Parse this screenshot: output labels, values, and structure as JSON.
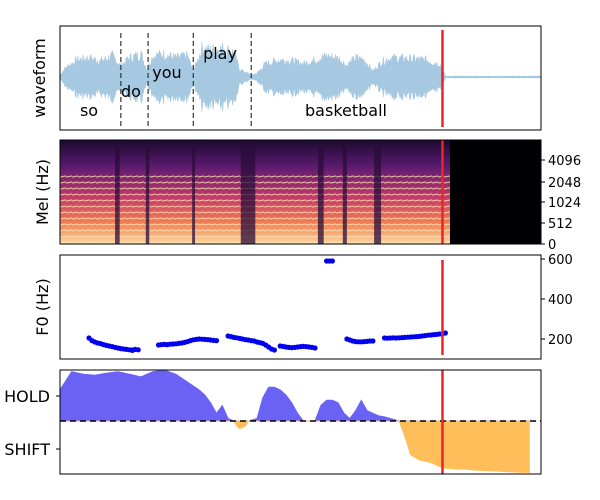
{
  "colors": {
    "waveform": "#a6c8e0",
    "marker": "#e8262a",
    "f0_points": "#0000ee",
    "hold_fill": "#6a62f4",
    "shift_fill": "#ffbe5a",
    "dashed": "#000000"
  },
  "chart_data": [
    {
      "type": "area",
      "panel": "waveform",
      "ylabel": "waveform",
      "word_labels": [
        "so",
        "do",
        "you",
        "play",
        "basketball"
      ],
      "word_boundaries_s": [
        1.05,
        1.52,
        2.3,
        3.3
      ],
      "time_range_s": [
        0,
        8.3
      ],
      "speech_end_s": 6.6,
      "marker_s": 6.6,
      "amplitude_envelope": [
        [
          0.0,
          0.05
        ],
        [
          0.1,
          0.25
        ],
        [
          0.3,
          0.45
        ],
        [
          0.5,
          0.5
        ],
        [
          0.7,
          0.42
        ],
        [
          0.9,
          0.55
        ],
        [
          1.05,
          0.3
        ],
        [
          1.2,
          0.5
        ],
        [
          1.4,
          0.6
        ],
        [
          1.5,
          0.2
        ],
        [
          1.6,
          0.55
        ],
        [
          1.8,
          0.6
        ],
        [
          2.0,
          0.5
        ],
        [
          2.2,
          0.55
        ],
        [
          2.3,
          0.15
        ],
        [
          2.45,
          0.75
        ],
        [
          2.6,
          0.7
        ],
        [
          2.8,
          0.75
        ],
        [
          3.0,
          0.65
        ],
        [
          3.1,
          0.2
        ],
        [
          3.3,
          0.05
        ],
        [
          3.4,
          0.1
        ],
        [
          3.55,
          0.35
        ],
        [
          3.8,
          0.45
        ],
        [
          4.0,
          0.42
        ],
        [
          4.2,
          0.35
        ],
        [
          4.4,
          0.45
        ],
        [
          4.6,
          0.55
        ],
        [
          4.8,
          0.5
        ],
        [
          4.95,
          0.3
        ],
        [
          5.1,
          0.5
        ],
        [
          5.25,
          0.45
        ],
        [
          5.4,
          0.15
        ],
        [
          5.55,
          0.4
        ],
        [
          5.7,
          0.5
        ],
        [
          6.0,
          0.48
        ],
        [
          6.3,
          0.45
        ],
        [
          6.55,
          0.35
        ],
        [
          6.65,
          0.02
        ],
        [
          8.3,
          0.02
        ]
      ]
    },
    {
      "type": "heatmap",
      "panel": "mel-spectrogram",
      "ylabel": "Mel (Hz)",
      "y_ticks": [
        "4096",
        "2048",
        "1024",
        "512",
        "0"
      ],
      "speech_end_s": 6.6,
      "marker_s": 6.6
    },
    {
      "type": "scatter",
      "panel": "f0",
      "ylabel": "F0 (Hz)",
      "y_ticks": [
        200,
        400,
        600
      ],
      "ylim": [
        100,
        620
      ],
      "marker_s": 6.6,
      "points": [
        [
          0.5,
          205
        ],
        [
          0.55,
          192
        ],
        [
          0.6,
          185
        ],
        [
          0.65,
          180
        ],
        [
          0.7,
          177
        ],
        [
          0.75,
          172
        ],
        [
          0.8,
          168
        ],
        [
          0.85,
          165
        ],
        [
          0.9,
          162
        ],
        [
          0.95,
          158
        ],
        [
          1.0,
          155
        ],
        [
          1.05,
          152
        ],
        [
          1.1,
          150
        ],
        [
          1.15,
          148
        ],
        [
          1.2,
          146
        ],
        [
          1.25,
          145
        ],
        [
          1.25,
          143
        ],
        [
          1.3,
          148
        ],
        [
          1.35,
          146
        ],
        [
          1.7,
          170
        ],
        [
          1.75,
          172
        ],
        [
          1.8,
          173
        ],
        [
          1.85,
          172
        ],
        [
          1.9,
          174
        ],
        [
          1.95,
          175
        ],
        [
          2.0,
          176
        ],
        [
          2.05,
          178
        ],
        [
          2.1,
          180
        ],
        [
          2.15,
          183
        ],
        [
          2.2,
          187
        ],
        [
          2.25,
          192
        ],
        [
          2.3,
          196
        ],
        [
          2.35,
          198
        ],
        [
          2.4,
          200
        ],
        [
          2.45,
          199
        ],
        [
          2.5,
          198
        ],
        [
          2.55,
          197
        ],
        [
          2.6,
          195
        ],
        [
          2.65,
          193
        ],
        [
          2.7,
          192
        ],
        [
          2.9,
          215
        ],
        [
          2.95,
          212
        ],
        [
          3.0,
          208
        ],
        [
          3.05,
          206
        ],
        [
          3.1,
          203
        ],
        [
          3.15,
          200
        ],
        [
          3.2,
          197
        ],
        [
          3.25,
          195
        ],
        [
          3.3,
          192
        ],
        [
          3.35,
          190
        ],
        [
          3.4,
          185
        ],
        [
          3.45,
          182
        ],
        [
          3.5,
          178
        ],
        [
          3.55,
          170
        ],
        [
          3.6,
          160
        ],
        [
          3.65,
          150
        ],
        [
          3.7,
          145
        ],
        [
          3.8,
          165
        ],
        [
          3.85,
          163
        ],
        [
          3.9,
          160
        ],
        [
          3.95,
          158
        ],
        [
          4.0,
          157
        ],
        [
          4.05,
          158
        ],
        [
          4.1,
          160
        ],
        [
          4.15,
          162
        ],
        [
          4.2,
          163
        ],
        [
          4.25,
          162
        ],
        [
          4.3,
          160
        ],
        [
          4.35,
          158
        ],
        [
          4.4,
          155
        ],
        [
          4.6,
          590
        ],
        [
          4.65,
          590
        ],
        [
          4.7,
          590
        ],
        [
          4.95,
          200
        ],
        [
          5.0,
          195
        ],
        [
          5.05,
          190
        ],
        [
          5.1,
          187
        ],
        [
          5.15,
          186
        ],
        [
          5.2,
          186
        ],
        [
          5.25,
          187
        ],
        [
          5.3,
          188
        ],
        [
          5.35,
          190
        ],
        [
          5.4,
          190
        ],
        [
          5.6,
          205
        ],
        [
          5.65,
          204
        ],
        [
          5.7,
          205
        ],
        [
          5.75,
          206
        ],
        [
          5.8,
          205
        ],
        [
          5.85,
          206
        ],
        [
          5.9,
          207
        ],
        [
          5.95,
          208
        ],
        [
          6.0,
          209
        ],
        [
          6.05,
          210
        ],
        [
          6.1,
          211
        ],
        [
          6.15,
          212
        ],
        [
          6.2,
          213
        ],
        [
          6.25,
          215
        ],
        [
          6.3,
          217
        ],
        [
          6.35,
          219
        ],
        [
          6.4,
          220
        ],
        [
          6.45,
          222
        ],
        [
          6.5,
          223
        ],
        [
          6.55,
          225
        ],
        [
          6.6,
          226
        ],
        [
          6.65,
          230
        ]
      ]
    },
    {
      "type": "area",
      "panel": "turn-taking",
      "y_tick_labels": [
        "HOLD",
        "SHIFT"
      ],
      "ylim": [
        -1.0,
        1.0
      ],
      "threshold": 0.0,
      "marker_s": 6.6,
      "values": [
        [
          0.0,
          0.6
        ],
        [
          0.2,
          0.95
        ],
        [
          0.4,
          0.9
        ],
        [
          0.6,
          0.88
        ],
        [
          0.8,
          0.92
        ],
        [
          1.0,
          0.95
        ],
        [
          1.2,
          0.9
        ],
        [
          1.4,
          0.85
        ],
        [
          1.6,
          0.95
        ],
        [
          1.8,
          0.98
        ],
        [
          2.0,
          0.9
        ],
        [
          2.2,
          0.75
        ],
        [
          2.4,
          0.6
        ],
        [
          2.5,
          0.5
        ],
        [
          2.6,
          0.35
        ],
        [
          2.7,
          0.15
        ],
        [
          2.8,
          0.3
        ],
        [
          2.9,
          0.05
        ],
        [
          3.0,
          0.0
        ],
        [
          3.05,
          -0.1
        ],
        [
          3.1,
          -0.15
        ],
        [
          3.2,
          -0.1
        ],
        [
          3.25,
          0.0
        ],
        [
          3.4,
          0.05
        ],
        [
          3.5,
          0.45
        ],
        [
          3.6,
          0.65
        ],
        [
          3.7,
          0.65
        ],
        [
          3.8,
          0.6
        ],
        [
          3.9,
          0.5
        ],
        [
          4.0,
          0.35
        ],
        [
          4.1,
          0.15
        ],
        [
          4.2,
          0.0
        ],
        [
          4.3,
          0.0
        ],
        [
          4.4,
          0.0
        ],
        [
          4.5,
          0.3
        ],
        [
          4.6,
          0.4
        ],
        [
          4.7,
          0.4
        ],
        [
          4.8,
          0.35
        ],
        [
          4.9,
          0.15
        ],
        [
          5.0,
          0.05
        ],
        [
          5.1,
          0.2
        ],
        [
          5.2,
          0.4
        ],
        [
          5.3,
          0.2
        ],
        [
          5.4,
          0.15
        ],
        [
          5.5,
          0.1
        ],
        [
          5.6,
          0.08
        ],
        [
          5.7,
          0.05
        ],
        [
          5.8,
          0.02
        ],
        [
          5.85,
          0.0
        ],
        [
          5.95,
          -0.3
        ],
        [
          6.05,
          -0.65
        ],
        [
          6.2,
          -0.75
        ],
        [
          6.4,
          -0.8
        ],
        [
          6.6,
          -0.9
        ],
        [
          6.8,
          -0.92
        ],
        [
          7.0,
          -0.93
        ],
        [
          7.2,
          -0.95
        ],
        [
          7.4,
          -0.96
        ],
        [
          7.6,
          -0.97
        ],
        [
          7.8,
          -0.98
        ],
        [
          8.0,
          -0.99
        ],
        [
          8.1,
          -0.99
        ]
      ]
    }
  ]
}
